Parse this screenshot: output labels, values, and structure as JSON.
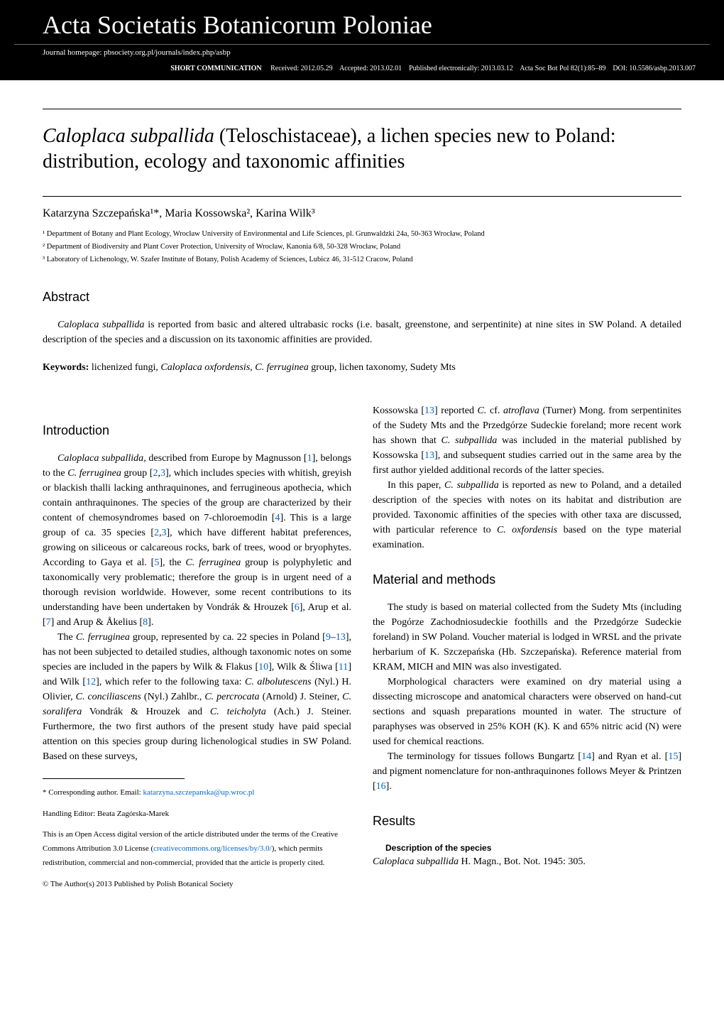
{
  "header": {
    "journal_title": "Acta Societatis Botanicorum Poloniae",
    "homepage_label": "Journal homepage: ",
    "homepage_url": "pbsociety.org.pl/journals/index.php/asbp",
    "type_label": "SHORT COMMUNICATION",
    "received_label": "Received: ",
    "received": "2012.05.29",
    "accepted_label": "Accepted: ",
    "accepted": "2013.02.01",
    "published_label": "Published electronically: ",
    "published": "2013.03.12",
    "citation": "Acta Soc Bot Pol 82(1):85–89",
    "doi_label": "DOI: ",
    "doi": "10.5586/asbp.2013.007"
  },
  "article": {
    "title_italic": "Caloplaca subpallida",
    "title_rest": " (Teloschistaceae), a lichen species new to Poland: distribution, ecology and taxonomic affinities",
    "authors_html": "Katarzyna Szczepańska¹*, Maria Kossowska², Karina Wilk³",
    "aff1": "¹ Department of Botany and Plant Ecology, Wrocław University of Environmental and Life Sciences, pl. Grunwaldzki 24a, 50-363 Wrocław, Poland",
    "aff2": "² Department of Biodiversity and Plant Cover Protection, University of Wrocław, Kanonia 6/8, 50-328 Wrocław, Poland",
    "aff3": "³ Laboratory of Lichenology, W. Szafer Institute of Botany, Polish Academy of Sciences, Lubicz 46, 31-512 Cracow, Poland"
  },
  "abstract": {
    "heading": "Abstract",
    "body_italic": "Caloplaca subpallida",
    "body_rest": " is reported from basic and altered ultrabasic rocks (i.e. basalt, greenstone, and serpentinite) at nine sites in SW Poland. A detailed description of the species and a discussion on its taxonomic affinities are provided.",
    "keywords_label": "Keywords:",
    "keywords": " lichenized fungi, Caloplaca oxfordensis, C. ferruginea group, lichen taxonomy, Sudety Mts"
  },
  "sections": {
    "intro_heading": "Introduction",
    "mm_heading": "Material and methods",
    "results_heading": "Results",
    "desc_heading": "Description of the species"
  },
  "footnotes": {
    "corresponding": "* Corresponding author. Email: ",
    "email": "katarzyna.szczepanska@up.wroc.pl",
    "editor": "Handling Editor: Beata Zagórska-Marek",
    "oa1": "This is an Open Access digital version of the article distributed under the terms of the Creative Commons Attribution 3.0 License (",
    "oa_link": "creativecommons.org/licenses/by/3.0/",
    "oa2": "), which permits redistribution, commercial and non-commercial, provided that the article is properly cited.",
    "copyright": "© The Author(s) 2013   Published by Polish Botanical Society"
  },
  "body": {
    "intro_p1": "Caloplaca subpallida, described from Europe by Magnusson [1], belongs to the C. ferruginea group [2,3], which includes species with whitish, greyish or blackish thalli lacking anthraquinones, and ferrugineous apothecia, which contain anthraquinones. The species of the group are characterized by their content of chemosyndromes based on 7-chloroemodin [4]. This is a large group of ca. 35 species [2,3], which have different habitat preferences, growing on siliceous or calcareous rocks, bark of trees, wood or bryophytes. According to Gaya et al. [5], the C. ferruginea group is polyphyletic and taxonomically very problematic; therefore the group is in urgent need of a thorough revision worldwide. However, some recent contributions to its understanding have been undertaken by Vondrák & Hrouzek [6], Arup et al. [7] and Arup & Åkelius [8].",
    "intro_p2": "The C. ferruginea group, represented by ca. 22 species in Poland [9–13], has not been subjected to detailed studies, although taxonomic notes on some species are included in the papers by Wilk & Flakus [10], Wilk & Śliwa [11] and Wilk [12], which refer to the following taxa: C. albolutescens (Nyl.) H. Olivier, C. conciliascens (Nyl.) Zahlbr., C. percrocata (Arnold) J. Steiner, C. soralifera Vondrák & Hrouzek and C. teicholyta (Ach.) J. Steiner. Furthermore, the two first authors of the present study have paid special attention on this species group during lichenological studies in SW Poland. Based on these surveys,",
    "intro_p3": "Kossowska [13] reported C. cf. atroflava (Turner) Mong. from serpentinites of the Sudety Mts and the Przedgórze Sudeckie foreland; more recent work has shown that C. subpallida was included in the material published by Kossowska [13], and subsequent studies carried out in the same area by the first author yielded additional records of the latter species.",
    "intro_p4": "In this paper, C. subpallida is reported as new to Poland, and a detailed description of the species with notes on its habitat and distribution are provided. Taxonomic affinities of the species with other taxa are discussed, with particular reference to C. oxfordensis based on the type material examination.",
    "mm_p1": "The study is based on material collected from the Sudety Mts (including the Pogórze Zachodniosudeckie foothills and the Przedgórze Sudeckie foreland) in SW Poland. Voucher material is lodged in WRSL and the private herbarium of K. Szczepańska (Hb. Szczepańska). Reference material from KRAM, MICH and MIN was also investigated.",
    "mm_p2": "Morphological characters were examined on dry material using a dissecting microscope and anatomical characters were observed on hand-cut sections and squash preparations mounted in water. The structure of paraphyses was observed in 25% KOH (K). K and 65% nitric acid (N) were used for chemical reactions.",
    "mm_p3": "The terminology for tissues follows Bungartz [14] and Ryan et al. [15] and pigment nomenclature for non-anthraquinones follows Meyer & Printzen [16].",
    "results_species": "Caloplaca subpallida H. Magn., Bot. Not. 1945: 305."
  },
  "colors": {
    "banner_bg": "#000000",
    "banner_text": "#ffffff",
    "link": "#0066cc",
    "text": "#000000",
    "background": "#ffffff"
  }
}
